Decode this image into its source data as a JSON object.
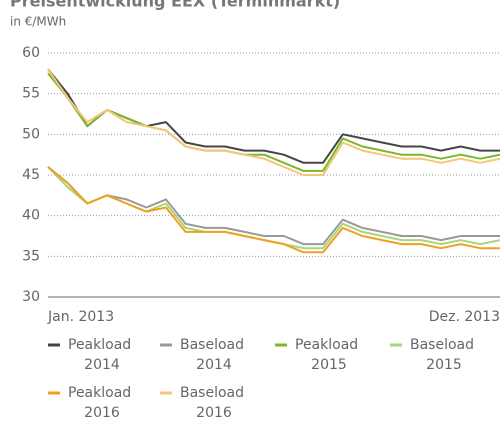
{
  "chart_data": {
    "type": "line",
    "title": "Preisentwicklung EEX (Terminmarkt)",
    "subtitle": "in €/MWh",
    "categories": [
      "Jan. 2013",
      null,
      null,
      null,
      null,
      null,
      null,
      null,
      null,
      null,
      null,
      null,
      null,
      null,
      null,
      null,
      null,
      null,
      null,
      null,
      null,
      null,
      null,
      "Dez. 2013"
    ],
    "ylim": [
      30,
      60
    ],
    "yticks": [
      30,
      35,
      40,
      45,
      50,
      55,
      60
    ],
    "grid": true,
    "series": [
      {
        "name": "Peakload 2014",
        "color": "#454545",
        "values": [
          58,
          55,
          51,
          53,
          52,
          51,
          51.5,
          49,
          48.5,
          48.5,
          48,
          48,
          47.5,
          46.5,
          46.5,
          50,
          49.5,
          49,
          48.5,
          48.5,
          48,
          48.5,
          48,
          48
        ]
      },
      {
        "name": "Baseload 2014",
        "color": "#999999",
        "values": [
          46,
          44,
          41.5,
          42.5,
          42,
          41,
          42,
          39,
          38.5,
          38.5,
          38,
          37.5,
          37.5,
          36.5,
          36.5,
          39.5,
          38.5,
          38,
          37.5,
          37.5,
          37,
          37.5,
          37.5,
          37.5
        ]
      },
      {
        "name": "Peakload 2015",
        "color": "#7ab929",
        "values": [
          57.5,
          54.5,
          51,
          53,
          52,
          51,
          50.5,
          48.5,
          48,
          48,
          47.5,
          47.5,
          46.5,
          45.5,
          45.5,
          49.5,
          48.5,
          48,
          47.5,
          47.5,
          47,
          47.5,
          47,
          47.5
        ]
      },
      {
        "name": "Baseload 2015",
        "color": "#a8d67a",
        "values": [
          46,
          43.5,
          41.5,
          42.5,
          41.5,
          40.5,
          41.5,
          38.5,
          38,
          38,
          37.5,
          37,
          36.5,
          36,
          36,
          39,
          38,
          37.5,
          37,
          37,
          36.5,
          37,
          36.5,
          37
        ]
      },
      {
        "name": "Peakload 2016",
        "color": "#f0a020",
        "values": [
          46,
          44,
          41.5,
          42.5,
          41.5,
          40.5,
          41,
          38,
          38,
          38,
          37.5,
          37,
          36.5,
          35.5,
          35.5,
          38.5,
          37.5,
          37,
          36.5,
          36.5,
          36,
          36.5,
          36,
          36
        ]
      },
      {
        "name": "Baseload 2016",
        "color": "#f5c67a",
        "values": [
          58,
          54.5,
          51.5,
          53,
          51.5,
          51,
          50.5,
          48.5,
          48,
          48,
          47.5,
          47,
          46,
          45,
          45,
          49,
          48,
          47.5,
          47,
          47,
          46.5,
          47,
          46.5,
          47
        ]
      }
    ]
  }
}
